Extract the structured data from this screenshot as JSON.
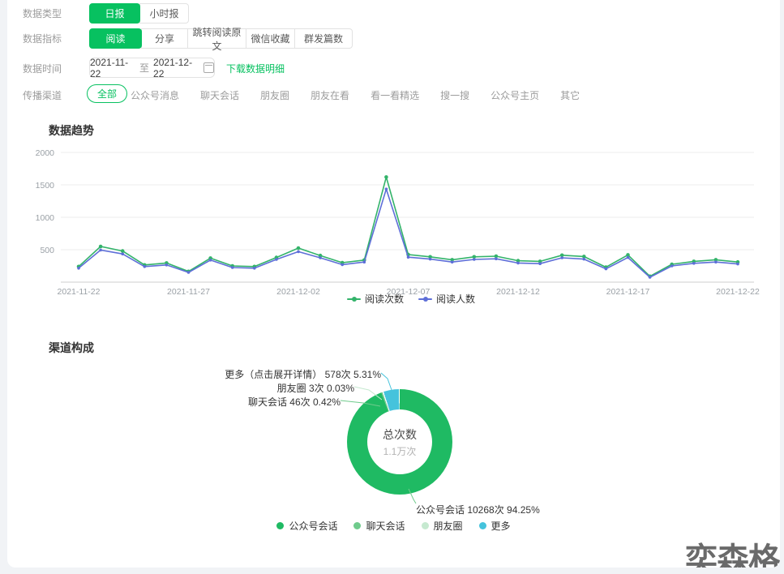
{
  "filters": {
    "data_type": {
      "label": "数据类型",
      "selected": "日报",
      "options": [
        {
          "label": "日报"
        },
        {
          "label": "小时报"
        }
      ]
    },
    "data_metric": {
      "label": "数据指标",
      "selected": "阅读",
      "options": [
        {
          "label": "阅读"
        },
        {
          "label": "分享"
        },
        {
          "label": "跳转阅读原文"
        },
        {
          "label": "微信收藏"
        },
        {
          "label": "群发篇数"
        }
      ]
    },
    "data_time": {
      "label": "数据时间",
      "start": "2021-11-22",
      "separator": "至",
      "end": "2021-12-22",
      "download_link": "下载数据明细"
    },
    "channel": {
      "label": "传播渠道",
      "selected": "全部",
      "options": [
        {
          "label": "全部"
        },
        {
          "label": "公众号消息"
        },
        {
          "label": "聊天会话"
        },
        {
          "label": "朋友圈"
        },
        {
          "label": "朋友在看"
        },
        {
          "label": "看一看精选"
        },
        {
          "label": "搜一搜"
        },
        {
          "label": "公众号主页"
        },
        {
          "label": "其它"
        }
      ]
    }
  },
  "trend": {
    "title": "数据趋势",
    "legend": [
      {
        "label": "阅读次数",
        "color": "#33b36a"
      },
      {
        "label": "阅读人数",
        "color": "#5e6fd8"
      }
    ]
  },
  "composition": {
    "title": "渠道构成",
    "center_label": "总次数",
    "center_value": "1.1万次",
    "callouts": [
      {
        "text": "更多（点击展开详情） 578次 5.31%"
      },
      {
        "text": "朋友圈 3次 0.03%"
      },
      {
        "text": "聊天会话 46次 0.42%"
      },
      {
        "text": "公众号会话 10268次 94.25%"
      }
    ],
    "legend": [
      {
        "label": "公众号会话",
        "color": "#1fba63"
      },
      {
        "label": "聊天会话",
        "color": "#6fcb8c"
      },
      {
        "label": "朋友圈",
        "color": "#c6e9d0"
      },
      {
        "label": "更多",
        "color": "#45c3dc"
      }
    ]
  },
  "watermark": "奕森格",
  "chart_data": [
    {
      "type": "line",
      "title": "数据趋势",
      "x": [
        "2021-11-22",
        "2021-11-23",
        "2021-11-24",
        "2021-11-25",
        "2021-11-26",
        "2021-11-27",
        "2021-11-28",
        "2021-11-29",
        "2021-11-30",
        "2021-12-01",
        "2021-12-02",
        "2021-12-03",
        "2021-12-04",
        "2021-12-05",
        "2021-12-06",
        "2021-12-07",
        "2021-12-08",
        "2021-12-09",
        "2021-12-10",
        "2021-12-11",
        "2021-12-12",
        "2021-12-13",
        "2021-12-14",
        "2021-12-15",
        "2021-12-16",
        "2021-12-17",
        "2021-12-18",
        "2021-12-19",
        "2021-12-20",
        "2021-12-21",
        "2021-12-22"
      ],
      "series": [
        {
          "name": "阅读次数",
          "color": "#33b36a",
          "values": [
            240,
            550,
            480,
            265,
            295,
            165,
            370,
            250,
            240,
            380,
            525,
            410,
            300,
            340,
            1620,
            425,
            390,
            345,
            390,
            400,
            330,
            320,
            415,
            395,
            230,
            420,
            90,
            275,
            320,
            345,
            310
          ]
        },
        {
          "name": "阅读人数",
          "color": "#5e6fd8",
          "values": [
            215,
            495,
            435,
            240,
            265,
            150,
            340,
            225,
            215,
            350,
            470,
            375,
            270,
            310,
            1435,
            385,
            355,
            310,
            350,
            360,
            295,
            285,
            375,
            355,
            205,
            380,
            75,
            250,
            290,
            310,
            280
          ]
        }
      ],
      "ylim": [
        0,
        2000
      ],
      "yticks": [
        500,
        1000,
        1500,
        2000
      ],
      "xtick_labels": [
        "2021-11-22",
        "2021-11-27",
        "2021-12-02",
        "2021-12-07",
        "2021-12-12",
        "2021-12-17",
        "2021-12-22"
      ],
      "xtick_indices": [
        0,
        5,
        10,
        15,
        20,
        25,
        30
      ],
      "grid": true,
      "legend_position": "bottom"
    },
    {
      "type": "pie",
      "title": "渠道构成",
      "labels": [
        "公众号会话",
        "聊天会话",
        "朋友圈",
        "更多"
      ],
      "values": [
        10268,
        46,
        3,
        578
      ],
      "percents": [
        "94.25%",
        "0.42%",
        "0.03%",
        "5.31%"
      ],
      "value_labels": [
        "10268次 94.25%",
        "46次 0.42%",
        "3次 0.03%",
        "578次 5.31%"
      ],
      "colors": [
        "#1fba63",
        "#6fcb8c",
        "#c6e9d0",
        "#45c3dc"
      ],
      "center_label": "总次数",
      "center_value": "1.1万次",
      "total_value": 10895
    }
  ]
}
